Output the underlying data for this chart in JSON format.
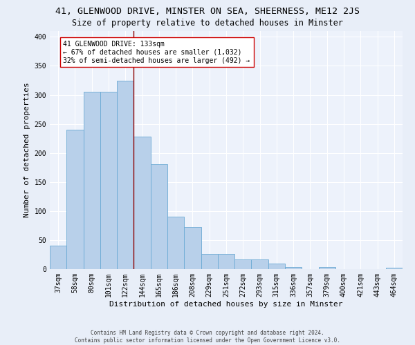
{
  "title1": "41, GLENWOOD DRIVE, MINSTER ON SEA, SHEERNESS, ME12 2JS",
  "title2": "Size of property relative to detached houses in Minster",
  "xlabel": "Distribution of detached houses by size in Minster",
  "ylabel": "Number of detached properties",
  "categories": [
    "37sqm",
    "58sqm",
    "80sqm",
    "101sqm",
    "122sqm",
    "144sqm",
    "165sqm",
    "186sqm",
    "208sqm",
    "229sqm",
    "251sqm",
    "272sqm",
    "293sqm",
    "315sqm",
    "336sqm",
    "357sqm",
    "379sqm",
    "400sqm",
    "421sqm",
    "443sqm",
    "464sqm"
  ],
  "values": [
    40,
    240,
    305,
    305,
    325,
    228,
    181,
    90,
    73,
    26,
    26,
    17,
    17,
    10,
    4,
    0,
    4,
    0,
    0,
    0,
    2
  ],
  "bar_color": "#b8d0ea",
  "bar_edge_color": "#6aaad4",
  "vline_color": "#8b0000",
  "annotation_text": "41 GLENWOOD DRIVE: 133sqm\n← 67% of detached houses are smaller (1,032)\n32% of semi-detached houses are larger (492) →",
  "annotation_box_color": "white",
  "annotation_box_edge": "#cc0000",
  "ylim": [
    0,
    410
  ],
  "yticks": [
    0,
    50,
    100,
    150,
    200,
    250,
    300,
    350,
    400
  ],
  "bg_color": "#e8eef8",
  "plot_bg": "#edf2fb",
  "grid_color": "white",
  "footer_text": "Contains HM Land Registry data © Crown copyright and database right 2024.\nContains public sector information licensed under the Open Government Licence v3.0.",
  "title1_fontsize": 9.5,
  "title2_fontsize": 8.5,
  "xlabel_fontsize": 8,
  "ylabel_fontsize": 8,
  "tick_fontsize": 7,
  "annotation_fontsize": 7,
  "footer_fontsize": 5.5
}
